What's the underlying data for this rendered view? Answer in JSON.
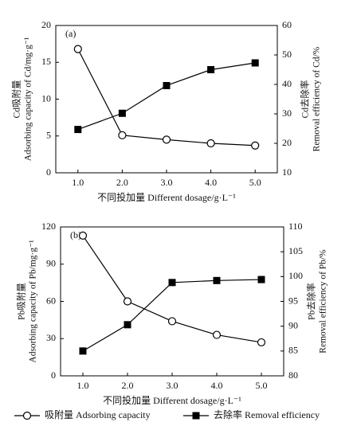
{
  "chart_data": [
    {
      "type": "line",
      "panel_label": "(a)",
      "xlabel": "不同投加量 Different dosage/g·L⁻¹",
      "ylabel": [
        "Cd吸附量",
        "Adsorbing capacity of Cd/mg·g⁻¹"
      ],
      "y2label": [
        "Cd去除率",
        "Removal efficiency of Cd/%"
      ],
      "x": [
        1,
        2,
        3,
        4,
        5
      ],
      "xlim": [
        0.5,
        5.5
      ],
      "xticks": [
        {
          "value": 1,
          "label": "1.0"
        },
        {
          "value": 2,
          "label": "2.0"
        },
        {
          "value": 3,
          "label": "3.0"
        },
        {
          "value": 4,
          "label": "4.0"
        },
        {
          "value": 5,
          "label": "5.0"
        }
      ],
      "ylim": [
        0,
        20
      ],
      "yticks": [
        0,
        5,
        10,
        15,
        20
      ],
      "y2lim": [
        10,
        60
      ],
      "y2ticks": [
        10,
        20,
        30,
        40,
        50,
        60
      ],
      "series": [
        {
          "name": "吸附量 Adsorbing capacity",
          "color": "#000000",
          "marker": "circle",
          "values": [
            16.8,
            5.1,
            4.5,
            4.0,
            3.7
          ]
        },
        {
          "name": "去除率 Removal efficiency",
          "color": "#000000",
          "marker": "square",
          "axis": "y2",
          "values": [
            24.7,
            30.2,
            39.6,
            45.0,
            47.3
          ]
        }
      ]
    },
    {
      "type": "line",
      "panel_label": "(b)",
      "xlabel": "不同投加量 Different dosage/g·L⁻¹",
      "ylabel": [
        "Pb吸附量",
        "Adsorbing capacity of Pb/mg·g⁻¹"
      ],
      "y2label": [
        "Pb去除率",
        "Removal efficiency of Pb/%"
      ],
      "x": [
        1,
        2,
        3,
        4,
        5
      ],
      "xlim": [
        0.5,
        5.5
      ],
      "xticks": [
        {
          "value": 1,
          "label": "1.0"
        },
        {
          "value": 2,
          "label": "2.0"
        },
        {
          "value": 3,
          "label": "3.0"
        },
        {
          "value": 4,
          "label": "4.0"
        },
        {
          "value": 5,
          "label": "5.0"
        }
      ],
      "ylim": [
        0,
        120
      ],
      "yticks": [
        0,
        30,
        60,
        90,
        120
      ],
      "y2lim": [
        80,
        110
      ],
      "y2ticks": [
        80,
        85,
        90,
        95,
        100,
        105,
        110
      ],
      "series": [
        {
          "color": "#000000",
          "marker": "circle",
          "values": [
            113,
            60,
            44,
            33,
            27
          ]
        },
        {
          "color": "#000000",
          "marker": "square",
          "axis": "y2",
          "values": [
            85.0,
            90.3,
            98.8,
            99.2,
            99.4
          ]
        }
      ]
    }
  ]
}
